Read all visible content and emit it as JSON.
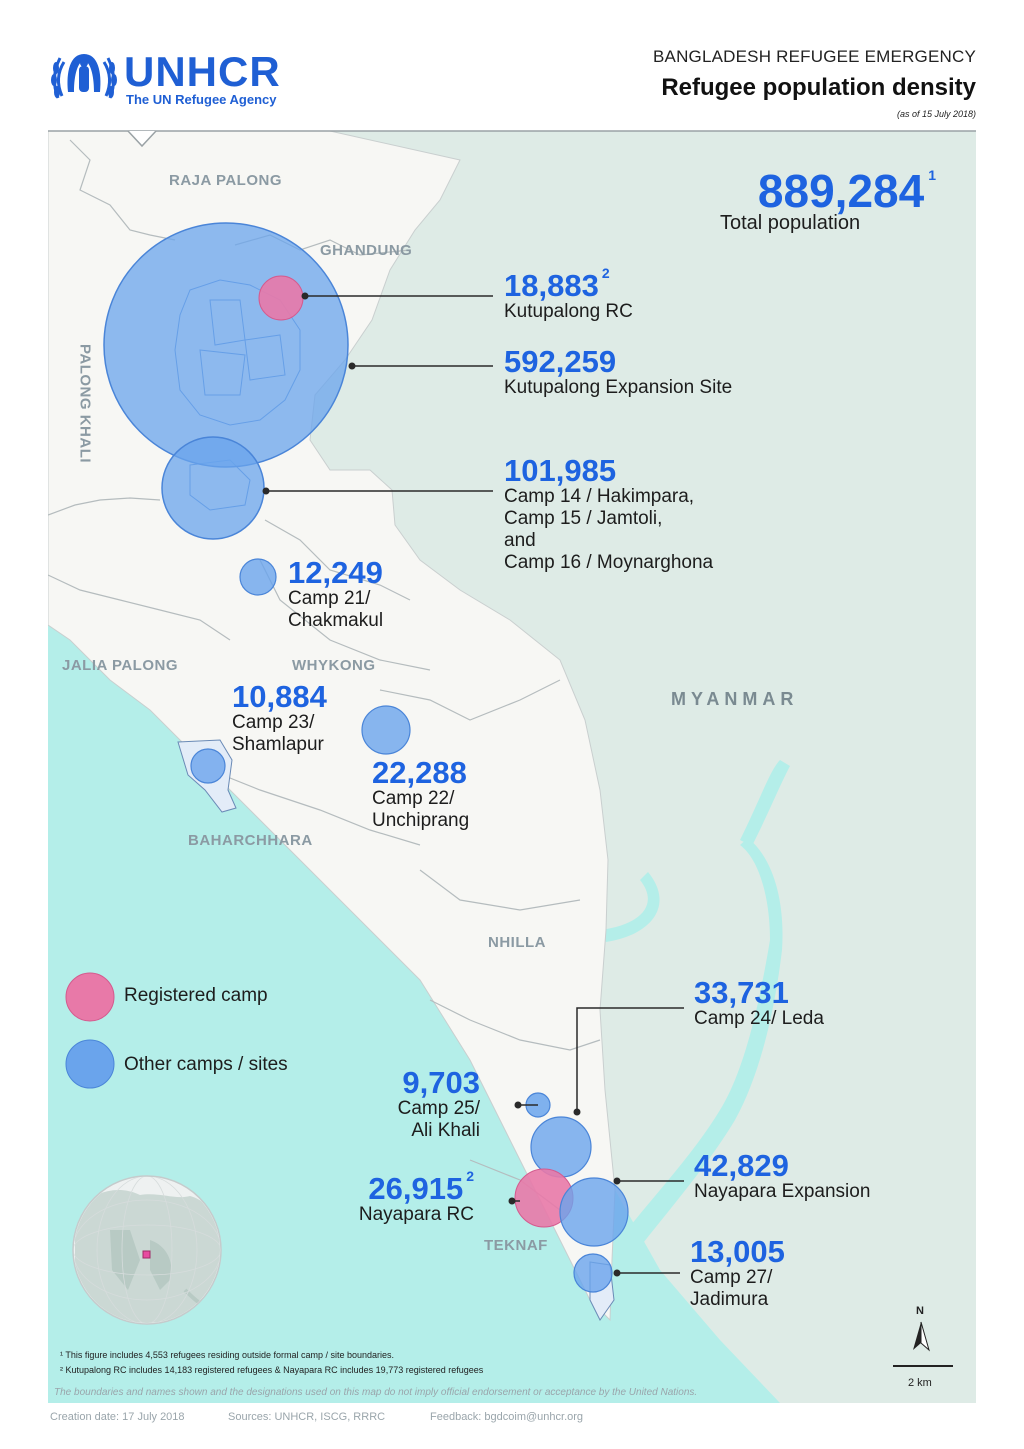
{
  "header": {
    "logo_word": "UNHCR",
    "logo_sub": "The UN Refugee Agency",
    "kicker": "BANGLADESH REFUGEE EMERGENCY",
    "title": "Refugee population density",
    "date": "(as of 15 July 2018)"
  },
  "total": {
    "value": "889,284",
    "note": "1",
    "label": "Total population"
  },
  "camps": [
    {
      "value": "18,883",
      "note": "2",
      "lines": [
        "Kutupalong RC"
      ],
      "type": "registered"
    },
    {
      "value": "592,259",
      "lines": [
        "Kutupalong Expansion Site"
      ],
      "type": "other"
    },
    {
      "value": "101,985",
      "lines": [
        "Camp 14 / Hakimpara,",
        "Camp 15 / Jamtoli,",
        "and",
        "Camp 16 / Moynarghona"
      ],
      "type": "other"
    },
    {
      "value": "12,249",
      "lines": [
        "Camp 21/",
        "Chakmakul"
      ],
      "type": "other"
    },
    {
      "value": "10,884",
      "lines": [
        "Camp 23/",
        "Shamlapur"
      ],
      "type": "other"
    },
    {
      "value": "22,288",
      "lines": [
        "Camp 22/",
        "Unchiprang"
      ],
      "type": "other"
    },
    {
      "value": "33,731",
      "lines": [
        "Camp 24/ Leda"
      ],
      "type": "other"
    },
    {
      "value": "9,703",
      "lines": [
        "Camp 25/",
        "Ali Khali"
      ],
      "type": "other"
    },
    {
      "value": "42,829",
      "lines": [
        "Nayapara Expansion"
      ],
      "type": "other"
    },
    {
      "value": "26,915",
      "note": "2",
      "lines": [
        "Nayapara RC"
      ],
      "type": "registered"
    },
    {
      "value": "13,005",
      "lines": [
        "Camp 27/",
        "Jadimura"
      ],
      "type": "other"
    }
  ],
  "areas": [
    "RAJA PALONG",
    "GHANDUNG",
    "PALONG KHALI",
    "JALIA PALONG",
    "WHYKONG",
    "BAHARCHHARA",
    "NHILLA",
    "TEKNAF"
  ],
  "country": "MYANMAR",
  "legend": [
    {
      "label": "Registered camp",
      "color": "#e879a8"
    },
    {
      "label": "Other camps / sites",
      "color": "#6aa4ec"
    }
  ],
  "north": "N",
  "scale": "2 km",
  "footnotes": [
    "¹ This figure includes 4,553 refugees residing outside formal camp / site boundaries.",
    "² Kutupalong RC includes 14,183 registered refugees & Nayapara RC includes 19,773 registered refugees"
  ],
  "disclaimer": "The boundaries and names shown and the designations used on this map do not imply official endorsement or acceptance by the United Nations.",
  "credits": {
    "creation": "Creation date: 17 July 2018",
    "sources": "Sources: UNHCR, ISCG, RRRC",
    "feedback": "Feedback: bgdcoim@unhcr.org"
  },
  "colors": {
    "sea": "#b4eee9",
    "land": "#f7f7f4",
    "myanmar": "#deebe6",
    "accent": "#1e63e0",
    "registered": "#e879a8",
    "other": "#6aa4ec"
  }
}
